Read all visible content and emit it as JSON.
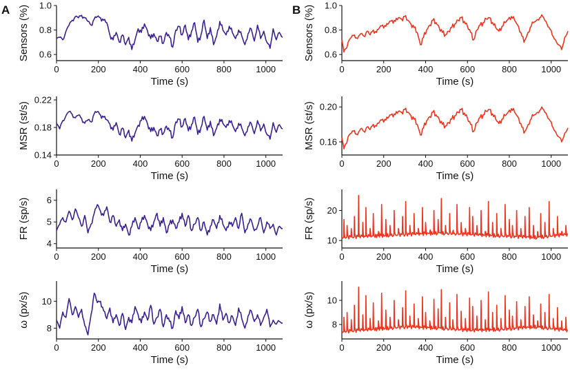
{
  "figure": {
    "colors": {
      "A": "#3a1f96",
      "B": "#f0341c",
      "axis": "#111111"
    },
    "columns": [
      {
        "label": "A",
        "color_key": "A"
      },
      {
        "label": "B",
        "color_key": "B"
      }
    ]
  },
  "chart_data": [
    {
      "id": "A1",
      "column": "A",
      "type": "line",
      "title": "",
      "xlabel": "Time (s)",
      "ylabel": "Sensors (%)",
      "xlim": [
        0,
        1080
      ],
      "ylim": [
        0.55,
        1.0
      ],
      "xticks": [
        0,
        200,
        400,
        600,
        800,
        1000
      ],
      "yticks": [
        0.6,
        0.8,
        1.0
      ],
      "yticklabels": [
        "0.6",
        "0.8",
        "1.0"
      ],
      "x": [
        0,
        15,
        30,
        45,
        60,
        75,
        90,
        105,
        120,
        135,
        150,
        165,
        180,
        195,
        210,
        225,
        240,
        255,
        270,
        285,
        300,
        315,
        330,
        345,
        360,
        375,
        390,
        405,
        420,
        435,
        450,
        465,
        480,
        495,
        510,
        525,
        540,
        555,
        570,
        585,
        600,
        615,
        630,
        645,
        660,
        675,
        690,
        705,
        720,
        735,
        750,
        765,
        780,
        795,
        810,
        825,
        840,
        855,
        870,
        885,
        900,
        915,
        930,
        945,
        960,
        975,
        990,
        1005,
        1020,
        1035,
        1050,
        1065,
        1080
      ],
      "y": [
        0.73,
        0.74,
        0.72,
        0.79,
        0.84,
        0.88,
        0.91,
        0.9,
        0.92,
        0.9,
        0.87,
        0.84,
        0.89,
        0.91,
        0.9,
        0.88,
        0.86,
        0.76,
        0.72,
        0.78,
        0.7,
        0.76,
        0.68,
        0.74,
        0.64,
        0.72,
        0.81,
        0.78,
        0.85,
        0.79,
        0.73,
        0.77,
        0.71,
        0.75,
        0.69,
        0.78,
        0.74,
        0.66,
        0.8,
        0.83,
        0.76,
        0.84,
        0.72,
        0.79,
        0.86,
        0.7,
        0.76,
        0.88,
        0.73,
        0.82,
        0.68,
        0.75,
        0.87,
        0.8,
        0.76,
        0.83,
        0.78,
        0.73,
        0.8,
        0.75,
        0.68,
        0.77,
        0.81,
        0.71,
        0.84,
        0.73,
        0.79,
        0.7,
        0.65,
        0.81,
        0.72,
        0.78,
        0.74
      ]
    },
    {
      "id": "A2",
      "column": "A",
      "type": "line",
      "title": "",
      "xlabel": "Time (s)",
      "ylabel": "MSR (st/s)",
      "xlim": [
        0,
        1080
      ],
      "ylim": [
        0.14,
        0.225
      ],
      "xticks": [
        0,
        200,
        400,
        600,
        800,
        1000
      ],
      "yticks": [
        0.14,
        0.18,
        0.22
      ],
      "yticklabels": [
        "0.14",
        "0.18",
        "0.22"
      ],
      "x": [
        0,
        15,
        30,
        45,
        60,
        75,
        90,
        105,
        120,
        135,
        150,
        165,
        180,
        195,
        210,
        225,
        240,
        255,
        270,
        285,
        300,
        315,
        330,
        345,
        360,
        375,
        390,
        405,
        420,
        435,
        450,
        465,
        480,
        495,
        510,
        525,
        540,
        555,
        570,
        585,
        600,
        615,
        630,
        645,
        660,
        675,
        690,
        705,
        720,
        735,
        750,
        765,
        780,
        795,
        810,
        825,
        840,
        855,
        870,
        885,
        900,
        915,
        930,
        945,
        960,
        975,
        990,
        1005,
        1020,
        1035,
        1050,
        1065,
        1080
      ],
      "y": [
        0.186,
        0.178,
        0.19,
        0.197,
        0.203,
        0.199,
        0.194,
        0.198,
        0.193,
        0.186,
        0.191,
        0.188,
        0.2,
        0.203,
        0.198,
        0.195,
        0.191,
        0.185,
        0.176,
        0.187,
        0.17,
        0.179,
        0.165,
        0.176,
        0.16,
        0.172,
        0.183,
        0.19,
        0.196,
        0.185,
        0.174,
        0.18,
        0.168,
        0.177,
        0.171,
        0.182,
        0.175,
        0.165,
        0.188,
        0.192,
        0.181,
        0.193,
        0.175,
        0.184,
        0.195,
        0.17,
        0.18,
        0.196,
        0.176,
        0.189,
        0.168,
        0.179,
        0.192,
        0.186,
        0.18,
        0.19,
        0.184,
        0.174,
        0.186,
        0.179,
        0.168,
        0.181,
        0.186,
        0.171,
        0.19,
        0.175,
        0.185,
        0.17,
        0.163,
        0.187,
        0.173,
        0.184,
        0.178
      ]
    },
    {
      "id": "A3",
      "column": "A",
      "type": "line",
      "title": "",
      "xlabel": "Time (s)",
      "ylabel": "FR (sp/s)",
      "xlim": [
        0,
        1080
      ],
      "ylim": [
        3.8,
        6.5
      ],
      "xticks": [
        0,
        200,
        400,
        600,
        800,
        1000
      ],
      "yticks": [
        4,
        5,
        6
      ],
      "yticklabels": [
        "4",
        "5",
        "6"
      ],
      "x": [
        0,
        15,
        30,
        45,
        60,
        75,
        90,
        105,
        120,
        135,
        150,
        165,
        180,
        195,
        210,
        225,
        240,
        255,
        270,
        285,
        300,
        315,
        330,
        345,
        360,
        375,
        390,
        405,
        420,
        435,
        450,
        465,
        480,
        495,
        510,
        525,
        540,
        555,
        570,
        585,
        600,
        615,
        630,
        645,
        660,
        675,
        690,
        705,
        720,
        735,
        750,
        765,
        780,
        795,
        810,
        825,
        840,
        855,
        870,
        885,
        900,
        915,
        930,
        945,
        960,
        975,
        990,
        1005,
        1020,
        1035,
        1050,
        1065,
        1080
      ],
      "y": [
        4.6,
        4.9,
        5.2,
        5.0,
        5.5,
        5.1,
        5.6,
        5.2,
        4.8,
        5.3,
        4.5,
        4.9,
        5.4,
        5.8,
        5.5,
        5.3,
        5.7,
        5.0,
        5.3,
        4.8,
        5.1,
        4.6,
        4.9,
        4.4,
        4.8,
        5.2,
        4.7,
        5.0,
        5.3,
        4.9,
        4.6,
        5.0,
        5.4,
        4.8,
        5.2,
        4.5,
        4.9,
        5.1,
        4.7,
        5.0,
        5.4,
        4.8,
        5.3,
        4.6,
        4.9,
        5.2,
        4.6,
        5.0,
        4.4,
        4.8,
        5.1,
        4.7,
        5.3,
        4.9,
        4.6,
        5.0,
        4.8,
        5.2,
        4.7,
        5.4,
        4.5,
        4.9,
        5.1,
        4.6,
        4.8,
        5.2,
        4.5,
        5.0,
        4.7,
        4.9,
        4.4,
        4.8,
        4.7
      ]
    },
    {
      "id": "A4",
      "column": "A",
      "type": "line",
      "title": "",
      "xlabel": "Time (s)",
      "ylabel": "ω (px/s)",
      "xlim": [
        0,
        1080
      ],
      "ylim": [
        7.2,
        11.5
      ],
      "xticks": [
        0,
        200,
        400,
        600,
        800,
        1000
      ],
      "yticks": [
        8,
        10
      ],
      "yticklabels": [
        "8",
        "10"
      ],
      "x": [
        0,
        15,
        30,
        45,
        60,
        75,
        90,
        105,
        120,
        135,
        150,
        165,
        180,
        195,
        210,
        225,
        240,
        255,
        270,
        285,
        300,
        315,
        330,
        345,
        360,
        375,
        390,
        405,
        420,
        435,
        450,
        465,
        480,
        495,
        510,
        525,
        540,
        555,
        570,
        585,
        600,
        615,
        630,
        645,
        660,
        675,
        690,
        705,
        720,
        735,
        750,
        765,
        780,
        795,
        810,
        825,
        840,
        855,
        870,
        885,
        900,
        915,
        930,
        945,
        960,
        975,
        990,
        1005,
        1020,
        1035,
        1050,
        1065,
        1080
      ],
      "y": [
        8.6,
        8.0,
        9.2,
        8.8,
        10.2,
        9.0,
        9.6,
        8.8,
        9.4,
        8.2,
        7.5,
        9.0,
        10.6,
        9.9,
        10.0,
        9.3,
        8.7,
        9.5,
        8.4,
        9.0,
        8.2,
        9.1,
        7.9,
        8.8,
        8.4,
        9.6,
        9.0,
        8.4,
        9.2,
        8.6,
        9.7,
        8.3,
        8.8,
        9.4,
        8.1,
        9.0,
        8.5,
        8.0,
        9.3,
        8.7,
        9.6,
        8.4,
        9.0,
        8.2,
        8.8,
        9.4,
        8.1,
        8.7,
        9.2,
        8.5,
        9.0,
        8.3,
        9.8,
        8.6,
        9.1,
        8.4,
        8.9,
        8.2,
        9.5,
        8.7,
        8.0,
        8.9,
        9.3,
        8.5,
        9.0,
        8.2,
        8.8,
        9.4,
        8.1,
        8.6,
        8.3,
        8.5,
        8.4
      ]
    },
    {
      "id": "B1",
      "column": "B",
      "type": "line",
      "title": "",
      "xlabel": "Time (s)",
      "ylabel": "Sensors (%)",
      "xlim": [
        0,
        1080
      ],
      "ylim": [
        0.55,
        1.0
      ],
      "xticks": [
        0,
        200,
        400,
        600,
        800,
        1000
      ],
      "yticks": [
        0.6,
        0.8,
        1.0
      ],
      "yticklabels": [
        "0.6",
        "0.8",
        "1.0"
      ],
      "x": [
        0,
        10,
        20,
        30,
        45,
        60,
        75,
        90,
        105,
        120,
        135,
        150,
        165,
        180,
        195,
        210,
        225,
        240,
        255,
        270,
        285,
        300,
        315,
        330,
        345,
        360,
        375,
        390,
        405,
        420,
        435,
        450,
        465,
        480,
        495,
        510,
        525,
        540,
        555,
        570,
        585,
        600,
        615,
        630,
        645,
        660,
        675,
        690,
        705,
        720,
        735,
        750,
        765,
        780,
        795,
        810,
        825,
        840,
        855,
        870,
        885,
        900,
        915,
        930,
        945,
        960,
        975,
        990,
        1005,
        1020,
        1035,
        1050,
        1065,
        1080
      ],
      "y": [
        0.72,
        0.62,
        0.65,
        0.7,
        0.74,
        0.76,
        0.73,
        0.77,
        0.75,
        0.79,
        0.76,
        0.8,
        0.78,
        0.82,
        0.84,
        0.83,
        0.86,
        0.88,
        0.87,
        0.9,
        0.89,
        0.91,
        0.88,
        0.85,
        0.82,
        0.78,
        0.68,
        0.74,
        0.8,
        0.84,
        0.88,
        0.86,
        0.82,
        0.78,
        0.76,
        0.79,
        0.82,
        0.85,
        0.88,
        0.9,
        0.87,
        0.83,
        0.78,
        0.72,
        0.8,
        0.84,
        0.86,
        0.89,
        0.9,
        0.86,
        0.82,
        0.79,
        0.83,
        0.86,
        0.89,
        0.91,
        0.88,
        0.84,
        0.78,
        0.7,
        0.76,
        0.82,
        0.86,
        0.88,
        0.9,
        0.91,
        0.87,
        0.82,
        0.76,
        0.72,
        0.68,
        0.64,
        0.74,
        0.79
      ]
    },
    {
      "id": "B2",
      "column": "B",
      "type": "line",
      "title": "",
      "xlabel": "Time (s)",
      "ylabel": "MSR (st/s)",
      "xlim": [
        0,
        1080
      ],
      "ylim": [
        0.145,
        0.212
      ],
      "xticks": [
        0,
        200,
        400,
        600,
        800,
        1000
      ],
      "yticks": [
        0.16,
        0.2
      ],
      "yticklabels": [
        "0.16",
        "0.20"
      ],
      "x": [
        0,
        10,
        20,
        30,
        45,
        60,
        75,
        90,
        105,
        120,
        135,
        150,
        165,
        180,
        195,
        210,
        225,
        240,
        255,
        270,
        285,
        300,
        315,
        330,
        345,
        360,
        375,
        390,
        405,
        420,
        435,
        450,
        465,
        480,
        495,
        510,
        525,
        540,
        555,
        570,
        585,
        600,
        615,
        630,
        645,
        660,
        675,
        690,
        705,
        720,
        735,
        750,
        765,
        780,
        795,
        810,
        825,
        840,
        855,
        870,
        885,
        900,
        915,
        930,
        945,
        960,
        975,
        990,
        1005,
        1020,
        1035,
        1050,
        1065,
        1080
      ],
      "y": [
        0.165,
        0.152,
        0.158,
        0.166,
        0.17,
        0.173,
        0.168,
        0.175,
        0.172,
        0.177,
        0.174,
        0.18,
        0.178,
        0.183,
        0.186,
        0.185,
        0.189,
        0.192,
        0.191,
        0.195,
        0.194,
        0.197,
        0.194,
        0.19,
        0.186,
        0.18,
        0.168,
        0.176,
        0.184,
        0.189,
        0.194,
        0.191,
        0.186,
        0.18,
        0.178,
        0.182,
        0.186,
        0.19,
        0.194,
        0.197,
        0.193,
        0.187,
        0.18,
        0.172,
        0.182,
        0.188,
        0.191,
        0.195,
        0.197,
        0.192,
        0.186,
        0.181,
        0.186,
        0.19,
        0.194,
        0.198,
        0.194,
        0.189,
        0.181,
        0.17,
        0.177,
        0.185,
        0.19,
        0.193,
        0.196,
        0.198,
        0.193,
        0.186,
        0.178,
        0.172,
        0.166,
        0.16,
        0.17,
        0.176
      ]
    },
    {
      "id": "B3",
      "column": "B",
      "type": "line",
      "title": "",
      "xlabel": "Time (s)",
      "ylabel": "FR (sp/s)",
      "xlim": [
        0,
        1080
      ],
      "ylim": [
        7.5,
        27
      ],
      "xticks": [
        0,
        200,
        400,
        600,
        800,
        1000
      ],
      "yticks": [
        10,
        20
      ],
      "yticklabels": [
        "10",
        "20"
      ],
      "baseline": [
        11,
        11.5,
        12,
        12.5,
        12,
        11.5,
        11,
        12
      ],
      "spike_x": [
        10,
        25,
        45,
        60,
        80,
        100,
        115,
        135,
        150,
        175,
        190,
        210,
        230,
        250,
        270,
        290,
        305,
        325,
        345,
        365,
        385,
        400,
        420,
        440,
        460,
        475,
        495,
        515,
        530,
        550,
        570,
        590,
        610,
        625,
        645,
        665,
        685,
        700,
        720,
        740,
        760,
        780,
        800,
        815,
        835,
        855,
        875,
        895,
        915,
        935,
        950,
        970,
        990,
        1010,
        1030,
        1050,
        1070
      ],
      "spike_y": [
        17,
        15,
        14,
        18,
        25,
        16,
        21,
        14,
        19,
        13,
        22,
        17,
        15,
        20,
        14,
        18,
        23,
        15,
        19,
        14,
        21,
        16,
        13,
        20,
        17,
        24,
        15,
        19,
        13,
        22,
        16,
        14,
        21,
        18,
        15,
        20,
        13,
        23,
        16,
        19,
        14,
        22,
        17,
        15,
        20,
        14,
        18,
        21,
        15,
        13,
        19,
        16,
        23,
        14,
        18,
        13,
        15
      ]
    },
    {
      "id": "B4",
      "column": "B",
      "type": "line",
      "title": "",
      "xlabel": "Time (s)",
      "ylabel": "ω (px/s)",
      "xlim": [
        0,
        1080
      ],
      "ylim": [
        6.8,
        11.6
      ],
      "xticks": [
        0,
        200,
        400,
        600,
        800,
        1000
      ],
      "yticks": [
        8,
        10
      ],
      "yticklabels": [
        "8",
        "10"
      ],
      "baseline": [
        7.4,
        7.6,
        7.8,
        7.7,
        7.5,
        7.6,
        7.8,
        7.5
      ],
      "spike_x": [
        10,
        25,
        45,
        60,
        80,
        100,
        115,
        135,
        150,
        175,
        190,
        210,
        230,
        250,
        270,
        290,
        305,
        325,
        345,
        365,
        385,
        400,
        420,
        440,
        460,
        475,
        495,
        515,
        530,
        550,
        570,
        590,
        610,
        625,
        645,
        665,
        685,
        700,
        720,
        740,
        760,
        780,
        800,
        815,
        835,
        855,
        875,
        895,
        915,
        935,
        950,
        970,
        990,
        1010,
        1030,
        1050,
        1070
      ],
      "spike_y": [
        8.6,
        9.0,
        8.4,
        9.6,
        11.1,
        8.8,
        10.4,
        8.5,
        9.8,
        8.3,
        10.6,
        9.2,
        8.6,
        10.0,
        8.4,
        9.4,
        10.8,
        8.7,
        9.7,
        8.5,
        10.3,
        9.0,
        8.3,
        10.1,
        9.3,
        10.9,
        8.6,
        9.8,
        8.4,
        10.5,
        9.1,
        8.5,
        10.2,
        9.5,
        8.7,
        10.0,
        8.4,
        10.7,
        9.0,
        9.6,
        8.5,
        10.4,
        9.2,
        8.7,
        9.9,
        8.4,
        9.5,
        10.3,
        8.8,
        8.3,
        9.7,
        9.0,
        10.5,
        8.5,
        9.4,
        8.3,
        8.6
      ]
    }
  ]
}
